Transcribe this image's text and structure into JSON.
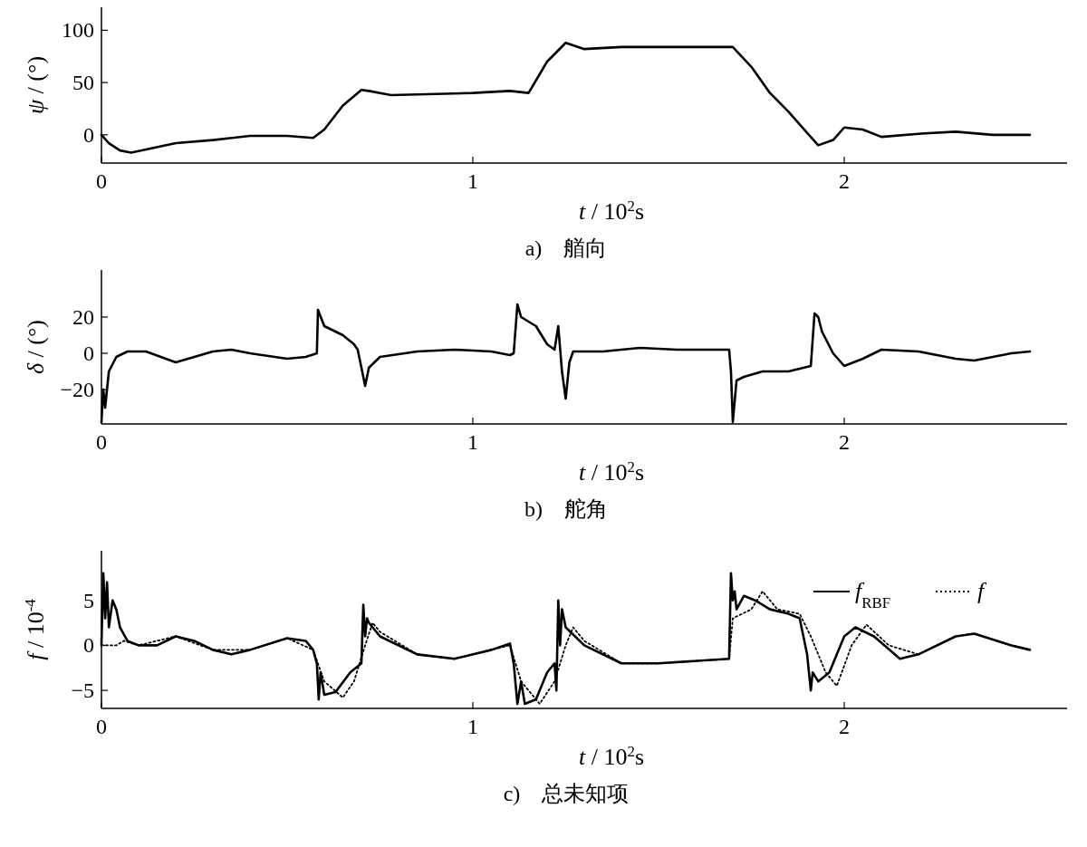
{
  "chart_data": [
    {
      "type": "line",
      "title": "a)　艏向",
      "xlabel": "*t* / 10$^{2}$s",
      "ylabel": "*ψ* / (°)",
      "xlim": [
        0,
        2.6
      ],
      "ylim": [
        -27,
        122
      ],
      "xticks": [
        0,
        1,
        2
      ],
      "yticks": [
        0,
        50,
        100
      ],
      "series": [
        {
          "color": "#000000",
          "x": [
            0,
            0.02,
            0.05,
            0.08,
            0.12,
            0.2,
            0.3,
            0.4,
            0.5,
            0.57,
            0.6,
            0.65,
            0.7,
            0.72,
            0.78,
            0.9,
            1.0,
            1.1,
            1.15,
            1.2,
            1.25,
            1.3,
            1.4,
            1.5,
            1.6,
            1.7,
            1.75,
            1.8,
            1.85,
            1.9,
            1.93,
            1.97,
            2.0,
            2.05,
            2.1,
            2.2,
            2.3,
            2.4,
            2.5
          ],
          "values": [
            0,
            -8,
            -15,
            -17,
            -14,
            -8,
            -5,
            -1,
            -1,
            -3,
            5,
            28,
            43,
            42,
            38,
            39,
            40,
            42,
            40,
            70,
            88,
            82,
            84,
            84,
            84,
            84,
            65,
            40,
            22,
            2,
            -10,
            -5,
            7,
            5,
            -2,
            1,
            3,
            0,
            0
          ]
        }
      ]
    },
    {
      "type": "line",
      "title": "b)　舵角",
      "xlabel": "*t* / 10$^{2}$s",
      "ylabel": "*δ* / (°)",
      "xlim": [
        0,
        2.6
      ],
      "ylim": [
        -39,
        46
      ],
      "xticks": [
        0,
        1,
        2
      ],
      "yticks": [
        -20,
        0,
        20
      ],
      "series": [
        {
          "color": "#000000",
          "x": [
            0,
            0.005,
            0.01,
            0.02,
            0.04,
            0.07,
            0.12,
            0.2,
            0.3,
            0.35,
            0.4,
            0.5,
            0.55,
            0.58,
            0.583,
            0.6,
            0.65,
            0.68,
            0.69,
            0.7,
            0.71,
            0.72,
            0.75,
            0.85,
            0.95,
            1.05,
            1.1,
            1.11,
            1.12,
            1.13,
            1.17,
            1.2,
            1.22,
            1.23,
            1.24,
            1.25,
            1.26,
            1.27,
            1.35,
            1.45,
            1.55,
            1.69,
            1.695,
            1.7,
            1.71,
            1.73,
            1.78,
            1.85,
            1.91,
            1.92,
            1.93,
            1.94,
            1.97,
            2.0,
            2.05,
            2.1,
            2.2,
            2.3,
            2.35,
            2.45,
            2.5
          ],
          "values": [
            -38,
            -20,
            -30,
            -10,
            -2,
            1,
            1,
            -5,
            1,
            2,
            0,
            -3,
            -2,
            0,
            24,
            15,
            10,
            5,
            2,
            -8,
            -18,
            -8,
            -2,
            1,
            2,
            1,
            -1,
            0,
            27,
            20,
            15,
            5,
            2,
            15,
            -10,
            -25,
            -5,
            1,
            1,
            3,
            2,
            2,
            -10,
            -38,
            -15,
            -13,
            -10,
            -10,
            -7,
            22,
            20,
            12,
            0,
            -7,
            -3,
            2,
            1,
            -3,
            -4,
            0,
            1
          ]
        }
      ]
    },
    {
      "type": "line",
      "title": "c)　总未知项",
      "xlabel": "*t* / 10$^{2}$s",
      "ylabel": "*f* / 10$^{-4}$",
      "xlim": [
        0,
        2.6
      ],
      "ylim": [
        -7,
        10.5
      ],
      "xticks": [
        0,
        1,
        2
      ],
      "yticks": [
        -5,
        0,
        5
      ],
      "legend": "top right",
      "series": [
        {
          "name": "*f*$_{RBF}$",
          "color": "#000000",
          "line_style": "solid",
          "x": [
            0,
            0.005,
            0.01,
            0.015,
            0.02,
            0.03,
            0.04,
            0.05,
            0.07,
            0.1,
            0.15,
            0.2,
            0.25,
            0.3,
            0.35,
            0.4,
            0.5,
            0.55,
            0.57,
            0.58,
            0.585,
            0.59,
            0.6,
            0.63,
            0.67,
            0.7,
            0.705,
            0.71,
            0.715,
            0.72,
            0.75,
            0.85,
            0.95,
            1.05,
            1.1,
            1.11,
            1.12,
            1.13,
            1.14,
            1.17,
            1.2,
            1.22,
            1.225,
            1.23,
            1.235,
            1.24,
            1.25,
            1.3,
            1.4,
            1.5,
            1.69,
            1.695,
            1.7,
            1.705,
            1.71,
            1.73,
            1.76,
            1.8,
            1.85,
            1.88,
            1.9,
            1.91,
            1.915,
            1.93,
            1.96,
            2.0,
            2.03,
            2.08,
            2.15,
            2.2,
            2.3,
            2.35,
            2.45,
            2.5
          ],
          "values": [
            0,
            8,
            3,
            7,
            2,
            5,
            4,
            2,
            0.5,
            0,
            0,
            1,
            0.5,
            -0.5,
            -1,
            -0.5,
            0.8,
            0.5,
            -0.5,
            -2,
            -6,
            -3,
            -5.5,
            -5.2,
            -3,
            -2,
            4.5,
            1,
            3,
            2.5,
            1,
            -1,
            -1.5,
            -0.5,
            0.2,
            -2,
            -6.5,
            -4,
            -6.5,
            -6,
            -3,
            -2,
            -5,
            5,
            0,
            4,
            2,
            0,
            -2,
            -2,
            -1.5,
            8,
            5,
            6,
            4,
            5.5,
            5,
            4,
            3.5,
            3,
            -1,
            -5,
            -3,
            -4,
            -3,
            1,
            2,
            1,
            -1.5,
            -1,
            1,
            1.3,
            0,
            -0.5
          ]
        },
        {
          "name": "*f*",
          "color": "#000000",
          "line_style": "dotted",
          "x": [
            0,
            0.04,
            0.06,
            0.1,
            0.2,
            0.3,
            0.4,
            0.5,
            0.57,
            0.6,
            0.65,
            0.68,
            0.71,
            0.73,
            0.75,
            0.85,
            0.95,
            1.05,
            1.1,
            1.13,
            1.18,
            1.22,
            1.25,
            1.27,
            1.3,
            1.4,
            1.5,
            1.69,
            1.7,
            1.75,
            1.78,
            1.82,
            1.88,
            1.91,
            1.95,
            1.98,
            2.02,
            2.06,
            2.12,
            2.2,
            2.3,
            2.35,
            2.45,
            2.5
          ],
          "values": [
            0,
            0,
            0.5,
            0,
            1,
            -0.5,
            -0.5,
            0.8,
            -0.5,
            -4,
            -5.8,
            -4,
            0,
            2.5,
            1.5,
            -1,
            -1.5,
            -0.5,
            0,
            -4,
            -6.5,
            -4,
            0,
            2,
            0.5,
            -2,
            -2,
            -1.5,
            3,
            4,
            6,
            4,
            3.5,
            1,
            -3,
            -4.5,
            0,
            2.3,
            0,
            -1,
            1,
            1.3,
            0,
            -0.5
          ]
        }
      ]
    }
  ]
}
